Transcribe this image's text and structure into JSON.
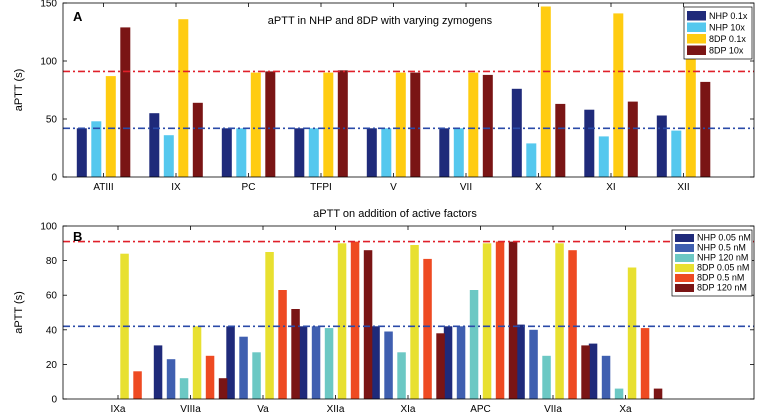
{
  "chart_data": [
    {
      "type": "bar",
      "panel_label": "A",
      "title": "aPTT in NHP and 8DP with varying zymogens",
      "xlabel": "",
      "ylabel": "aPTT (s)",
      "ylim": [
        0,
        150
      ],
      "yticks": [
        0,
        50,
        100,
        150
      ],
      "grid": false,
      "legend_position": "top-right",
      "categories": [
        "ATIII",
        "IX",
        "PC",
        "TFPI",
        "V",
        "VII",
        "X",
        "XI",
        "XII"
      ],
      "series": [
        {
          "name": "NHP 0.1x",
          "color": "#1f2a7a",
          "values": [
            42,
            55,
            42,
            42,
            42,
            42,
            76,
            58,
            53
          ]
        },
        {
          "name": "NHP 10x",
          "color": "#55c8ee",
          "values": [
            48,
            36,
            42,
            42,
            42,
            42,
            29,
            35,
            40
          ]
        },
        {
          "name": "8DP 0.1x",
          "color": "#ffcc11",
          "values": [
            87,
            136,
            90,
            90,
            90,
            90,
            147,
            141,
            125
          ]
        },
        {
          "name": "8DP 10x",
          "color": "#7a1515",
          "values": [
            129,
            64,
            91,
            92,
            90,
            88,
            63,
            65,
            82
          ]
        }
      ],
      "reference_lines": [
        {
          "y": 91,
          "color": "#e0202a"
        },
        {
          "y": 42,
          "color": "#2a4aa8"
        }
      ]
    },
    {
      "type": "bar",
      "panel_label": "B",
      "title": "aPTT on addition of active factors",
      "xlabel": "",
      "ylabel": "aPTT (s)",
      "ylim": [
        0,
        100
      ],
      "yticks": [
        0,
        20,
        40,
        60,
        80,
        100
      ],
      "grid": false,
      "legend_position": "top-right",
      "categories": [
        "IXa",
        "VIIIa",
        "Va",
        "XIIa",
        "XIa",
        "APC",
        "VIIa",
        "Xa"
      ],
      "series": [
        {
          "name": "NHP 0.05 nM",
          "color": "#1f2a7a",
          "values": [
            0,
            31,
            42,
            42,
            42,
            42,
            43,
            32
          ]
        },
        {
          "name": "NHP 0.5 nM",
          "color": "#3f5fb0",
          "values": [
            0,
            23,
            36,
            42,
            39,
            42,
            40,
            25
          ]
        },
        {
          "name": "NHP 120 nM",
          "color": "#6cc8c4",
          "values": [
            0,
            12,
            27,
            41,
            27,
            63,
            25,
            6
          ]
        },
        {
          "name": "8DP 0.05 nM",
          "color": "#e8e030",
          "values": [
            84,
            42,
            85,
            90,
            89,
            90,
            90,
            76
          ]
        },
        {
          "name": "8DP 0.5 nM",
          "color": "#ee4a22",
          "values": [
            16,
            25,
            63,
            91,
            81,
            91,
            86,
            41
          ]
        },
        {
          "name": "8DP 120 nM",
          "color": "#7a1515",
          "values": [
            0,
            12,
            52,
            86,
            38,
            91,
            31,
            6
          ]
        }
      ],
      "reference_lines": [
        {
          "y": 91,
          "color": "#e0202a"
        },
        {
          "y": 42,
          "color": "#2a4aa8"
        }
      ]
    }
  ]
}
